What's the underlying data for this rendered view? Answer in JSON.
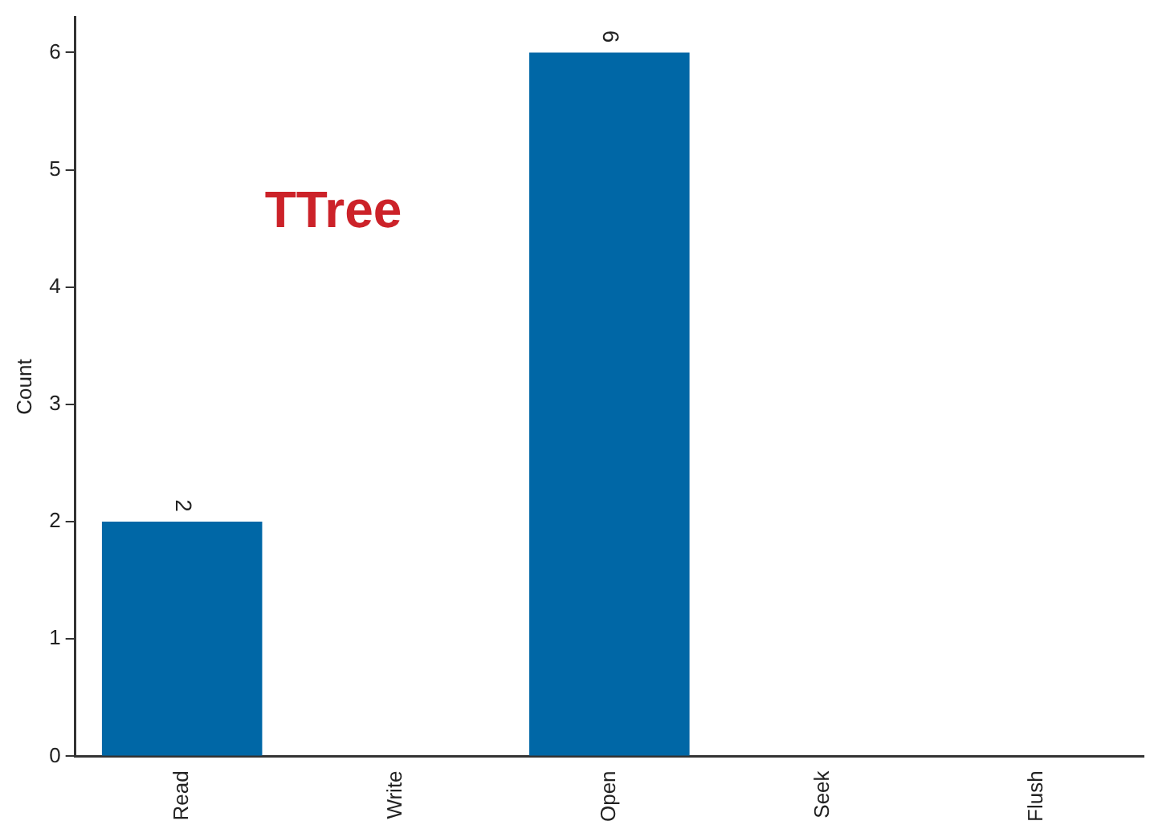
{
  "chart_data": {
    "type": "bar",
    "ylabel": "Count",
    "categories": [
      "Read",
      "Write",
      "Open",
      "Seek",
      "Flush"
    ],
    "values": [
      2,
      0,
      6,
      0,
      0
    ],
    "color": "#0067a6",
    "value_labels": [
      "2",
      null,
      "6",
      null,
      null
    ],
    "ylim": [
      0,
      6.3
    ],
    "yticks": [
      0,
      1,
      2,
      3,
      4,
      5,
      6
    ],
    "grid": false,
    "legend": false,
    "annotations": [
      "TTree"
    ]
  }
}
